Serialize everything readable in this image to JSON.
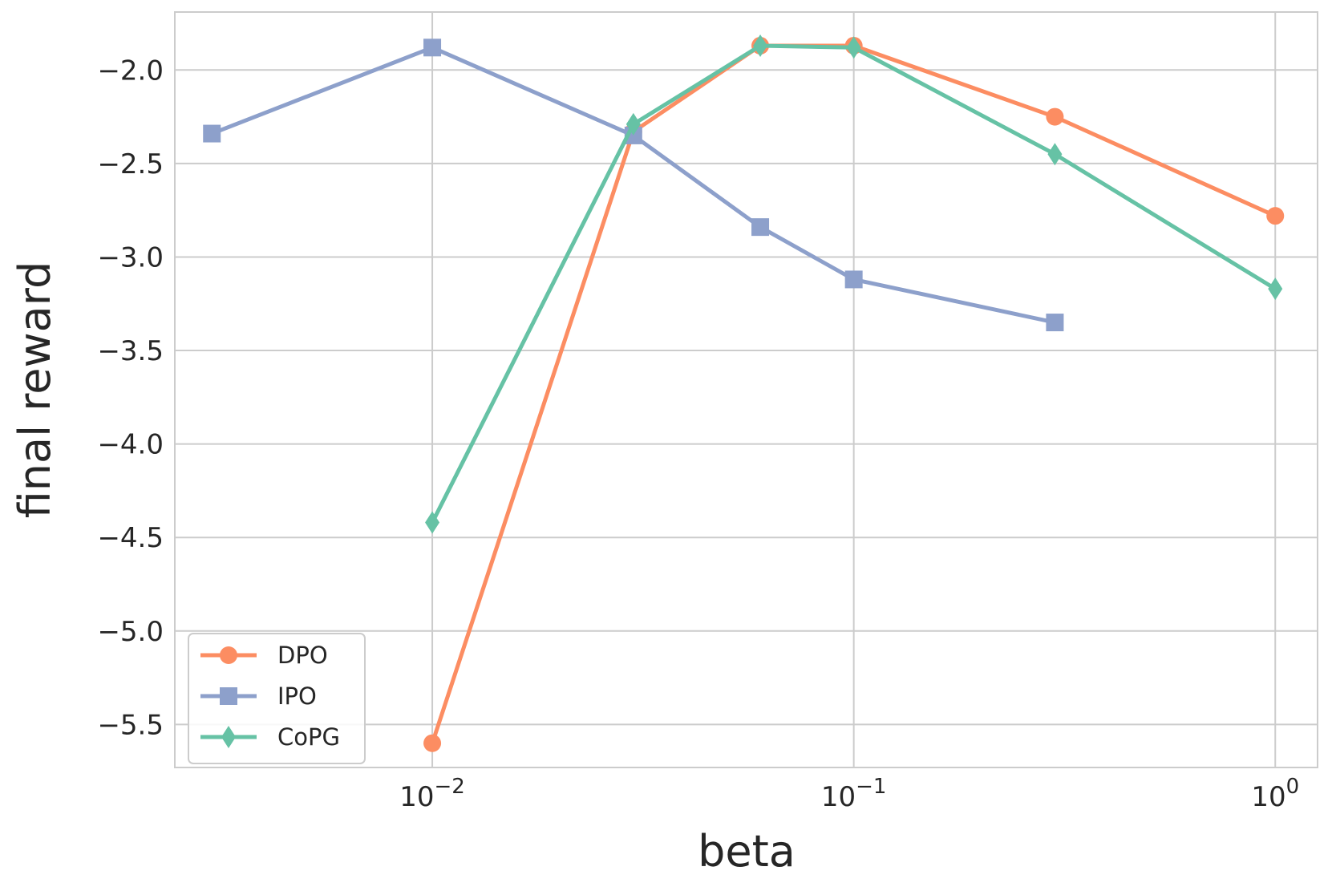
{
  "chart_data": {
    "type": "line",
    "title": "",
    "xlabel": "beta",
    "ylabel": "final reward",
    "x_scale": "log",
    "xlim": [
      0.00245,
      1.26
    ],
    "ylim": [
      -5.73,
      -1.69
    ],
    "x_ticks": [
      {
        "value": 0.01,
        "base": "10",
        "exp": "−2"
      },
      {
        "value": 0.1,
        "base": "10",
        "exp": "−1"
      },
      {
        "value": 1,
        "base": "10",
        "exp": "0"
      }
    ],
    "y_ticks": [
      {
        "value": -2.0,
        "label": "−2.0"
      },
      {
        "value": -2.5,
        "label": "−2.5"
      },
      {
        "value": -3.0,
        "label": "−3.0"
      },
      {
        "value": -3.5,
        "label": "−3.5"
      },
      {
        "value": -4.0,
        "label": "−4.0"
      },
      {
        "value": -4.5,
        "label": "−4.5"
      },
      {
        "value": -5.0,
        "label": "−5.0"
      },
      {
        "value": -5.5,
        "label": "−5.5"
      }
    ],
    "grid": true,
    "legend_position": "lower-left",
    "series": [
      {
        "name": "DPO",
        "color": "#fc8d62",
        "marker": "circle",
        "x": [
          0.01,
          0.03,
          0.06,
          0.1,
          0.3,
          1
        ],
        "y": [
          -5.6,
          -2.33,
          -1.87,
          -1.87,
          -2.25,
          -2.78
        ]
      },
      {
        "name": "IPO",
        "color": "#8da0cb",
        "marker": "square",
        "x": [
          0.003,
          0.01,
          0.03,
          0.06,
          0.1,
          0.3
        ],
        "y": [
          -2.34,
          -1.88,
          -2.35,
          -2.84,
          -3.12,
          -3.35
        ]
      },
      {
        "name": "CoPG",
        "color": "#66c2a5",
        "marker": "diamond",
        "x": [
          0.01,
          0.03,
          0.06,
          0.1,
          0.3,
          1
        ],
        "y": [
          -4.42,
          -2.29,
          -1.87,
          -1.88,
          -2.45,
          -3.17
        ]
      }
    ]
  }
}
